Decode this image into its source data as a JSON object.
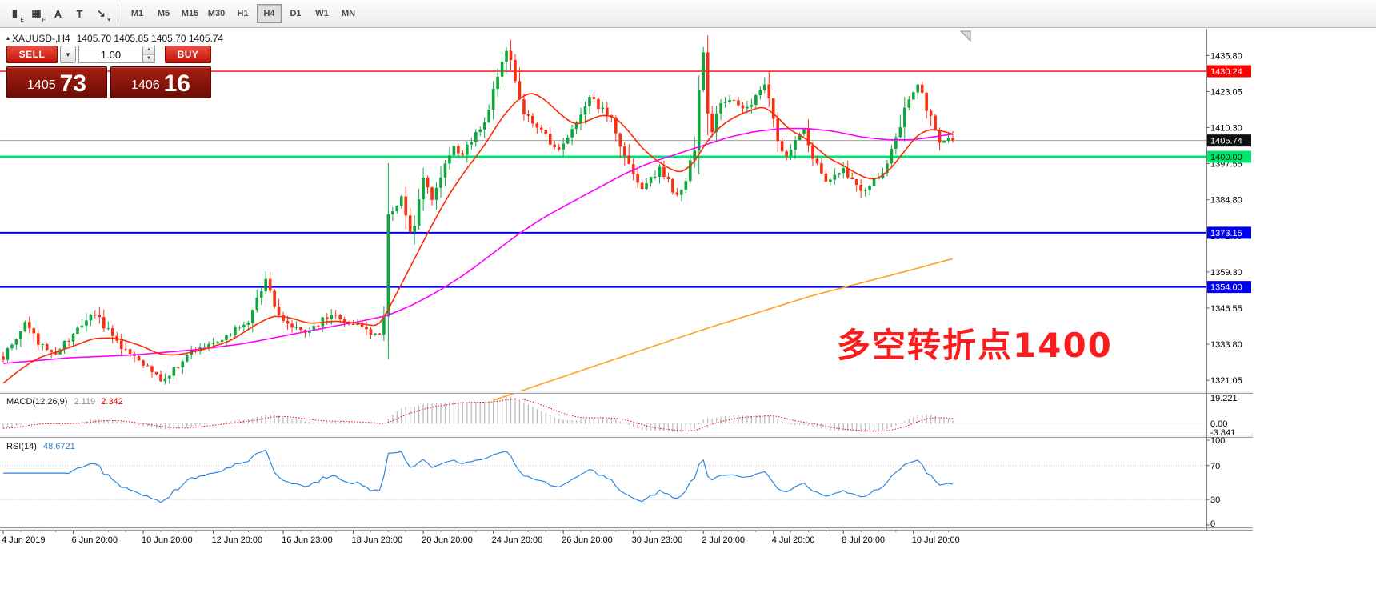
{
  "toolbar": {
    "tools": [
      {
        "name": "chart-style",
        "glyph": "▮",
        "sub": "E"
      },
      {
        "name": "grid",
        "glyph": "▦",
        "sub": "F"
      },
      {
        "name": "text-label",
        "glyph": "A",
        "sub": ""
      },
      {
        "name": "text-box",
        "glyph": "T",
        "sub": ""
      },
      {
        "name": "draw-arrow",
        "glyph": "↘",
        "sub": "▾"
      }
    ],
    "timeframes": [
      "M1",
      "M5",
      "M15",
      "M30",
      "H1",
      "H4",
      "D1",
      "W1",
      "MN"
    ],
    "active_timeframe": "H4"
  },
  "header": {
    "symbol": "XAUUSD-,H4",
    "ohlc": "1405.70 1405.85 1405.70 1405.74"
  },
  "trade_panel": {
    "sell_label": "SELL",
    "buy_label": "BUY",
    "volume": "1.00",
    "bid_main": "1405",
    "bid_big": "73",
    "ask_main": "1406",
    "ask_big": "16",
    "colors": {
      "button_red": "#d7261b",
      "panel_dark_red": "#8c150c"
    }
  },
  "annotation": {
    "text": "多空转折点1400",
    "color": "#fb1d1d"
  },
  "chart_data": {
    "type": "candlestick",
    "symbol": "XAUUSD",
    "timeframe": "H4",
    "title": "XAUUSD-,H4",
    "candle_count": 218,
    "price_min": 1317.7,
    "price_max": 1444.1,
    "current_price": 1405.74,
    "up_color": "#0fa73d",
    "down_color": "#fb2e12",
    "close_waypoints": [
      [
        0,
        1329
      ],
      [
        3,
        1336
      ],
      [
        5,
        1341
      ],
      [
        8,
        1334
      ],
      [
        12,
        1331
      ],
      [
        16,
        1337
      ],
      [
        21,
        1345
      ],
      [
        25,
        1336
      ],
      [
        28,
        1331
      ],
      [
        32,
        1327
      ],
      [
        36,
        1321
      ],
      [
        40,
        1326
      ],
      [
        43,
        1331
      ],
      [
        48,
        1334
      ],
      [
        52,
        1338
      ],
      [
        56,
        1342
      ],
      [
        58,
        1351
      ],
      [
        60,
        1356
      ],
      [
        62,
        1347
      ],
      [
        64,
        1342
      ],
      [
        67,
        1339
      ],
      [
        69,
        1337
      ],
      [
        72,
        1341
      ],
      [
        75,
        1345
      ],
      [
        78,
        1342
      ],
      [
        81,
        1341
      ],
      [
        84,
        1338
      ],
      [
        86,
        1337
      ],
      [
        87,
        1343
      ],
      [
        88,
        1378
      ],
      [
        90,
        1382
      ],
      [
        91,
        1386
      ],
      [
        93,
        1371
      ],
      [
        95,
        1385
      ],
      [
        96,
        1396
      ],
      [
        98,
        1384
      ],
      [
        100,
        1392
      ],
      [
        101,
        1398
      ],
      [
        103,
        1403
      ],
      [
        105,
        1401
      ],
      [
        108,
        1408
      ],
      [
        110,
        1413
      ],
      [
        112,
        1424
      ],
      [
        114,
        1433
      ],
      [
        115,
        1438
      ],
      [
        116,
        1432
      ],
      [
        117,
        1428
      ],
      [
        119,
        1416
      ],
      [
        121,
        1412
      ],
      [
        123,
        1410
      ],
      [
        125,
        1405
      ],
      [
        126,
        1402
      ],
      [
        128,
        1405
      ],
      [
        130,
        1409
      ],
      [
        132,
        1414
      ],
      [
        134,
        1421
      ],
      [
        136,
        1418
      ],
      [
        139,
        1414
      ],
      [
        141,
        1405
      ],
      [
        143,
        1396
      ],
      [
        145,
        1391
      ],
      [
        146,
        1388
      ],
      [
        148,
        1392
      ],
      [
        150,
        1396
      ],
      [
        152,
        1391
      ],
      [
        154,
        1386
      ],
      [
        156,
        1392
      ],
      [
        157,
        1398
      ],
      [
        158,
        1404
      ],
      [
        159,
        1420
      ],
      [
        160,
        1434
      ],
      [
        161,
        1414
      ],
      [
        162,
        1410
      ],
      [
        164,
        1418
      ],
      [
        166,
        1421
      ],
      [
        168,
        1419
      ],
      [
        170,
        1417
      ],
      [
        172,
        1421
      ],
      [
        174,
        1425
      ],
      [
        176,
        1412
      ],
      [
        178,
        1400
      ],
      [
        180,
        1402
      ],
      [
        181,
        1406
      ],
      [
        183,
        1411
      ],
      [
        185,
        1401
      ],
      [
        186,
        1396
      ],
      [
        188,
        1391
      ],
      [
        190,
        1394
      ],
      [
        192,
        1396
      ],
      [
        194,
        1391
      ],
      [
        196,
        1387
      ],
      [
        198,
        1390
      ],
      [
        200,
        1393
      ],
      [
        201,
        1395
      ],
      [
        203,
        1402
      ],
      [
        205,
        1412
      ],
      [
        206,
        1418
      ],
      [
        208,
        1422
      ],
      [
        209,
        1425
      ],
      [
        210,
        1422
      ],
      [
        212,
        1413
      ],
      [
        213,
        1408
      ],
      [
        214,
        1405
      ],
      [
        216,
        1407
      ],
      [
        217,
        1405.74
      ]
    ],
    "hlines": [
      {
        "price": 1430.24,
        "color": "#fe0000",
        "width": 1.4
      },
      {
        "price": 1400.0,
        "color": "#00e36e",
        "width": 3
      },
      {
        "price": 1373.15,
        "color": "#0000ef",
        "width": 2
      },
      {
        "price": 1354.0,
        "color": "#0000ef",
        "width": 2
      }
    ],
    "current_price_line_color": "#a0a0a0",
    "ma_lines": [
      {
        "name": "ma-fast",
        "color": "#ff2a00",
        "width": 1.6,
        "points": [
          [
            0,
            1320
          ],
          [
            4,
            1325
          ],
          [
            8,
            1329
          ],
          [
            14,
            1332
          ],
          [
            21,
            1336
          ],
          [
            26,
            1336
          ],
          [
            32,
            1333
          ],
          [
            36,
            1330
          ],
          [
            40,
            1330
          ],
          [
            46,
            1332
          ],
          [
            52,
            1335
          ],
          [
            58,
            1341
          ],
          [
            62,
            1344
          ],
          [
            66,
            1343
          ],
          [
            70,
            1341
          ],
          [
            76,
            1342
          ],
          [
            82,
            1341
          ],
          [
            86,
            1340
          ],
          [
            90,
            1352
          ],
          [
            94,
            1364
          ],
          [
            98,
            1376
          ],
          [
            102,
            1387
          ],
          [
            106,
            1396
          ],
          [
            110,
            1404
          ],
          [
            114,
            1414
          ],
          [
            118,
            1421
          ],
          [
            121,
            1423
          ],
          [
            124,
            1420
          ],
          [
            128,
            1414
          ],
          [
            131,
            1411
          ],
          [
            134,
            1413
          ],
          [
            137,
            1415
          ],
          [
            140,
            1414
          ],
          [
            143,
            1409
          ],
          [
            146,
            1403
          ],
          [
            149,
            1399
          ],
          [
            152,
            1396
          ],
          [
            155,
            1394
          ],
          [
            158,
            1398
          ],
          [
            161,
            1406
          ],
          [
            164,
            1411
          ],
          [
            167,
            1414
          ],
          [
            170,
            1416
          ],
          [
            174,
            1418
          ],
          [
            177,
            1414
          ],
          [
            180,
            1409
          ],
          [
            183,
            1407
          ],
          [
            186,
            1403
          ],
          [
            189,
            1399
          ],
          [
            192,
            1397
          ],
          [
            195,
            1394
          ],
          [
            198,
            1392
          ],
          [
            200,
            1392
          ],
          [
            203,
            1396
          ],
          [
            206,
            1402
          ],
          [
            209,
            1408
          ],
          [
            212,
            1410
          ],
          [
            215,
            1409
          ],
          [
            217,
            1408
          ]
        ]
      },
      {
        "name": "ma-mid",
        "color": "#ff00ff",
        "width": 1.6,
        "points": [
          [
            0,
            1327
          ],
          [
            15,
            1329
          ],
          [
            30,
            1330
          ],
          [
            45,
            1332
          ],
          [
            55,
            1334
          ],
          [
            65,
            1337
          ],
          [
            75,
            1340
          ],
          [
            82,
            1342
          ],
          [
            88,
            1344
          ],
          [
            94,
            1348
          ],
          [
            100,
            1353
          ],
          [
            106,
            1359
          ],
          [
            112,
            1366
          ],
          [
            118,
            1373
          ],
          [
            124,
            1379
          ],
          [
            130,
            1384
          ],
          [
            136,
            1389
          ],
          [
            142,
            1394
          ],
          [
            148,
            1398
          ],
          [
            154,
            1401
          ],
          [
            160,
            1404
          ],
          [
            166,
            1407
          ],
          [
            172,
            1409
          ],
          [
            178,
            1410
          ],
          [
            184,
            1410
          ],
          [
            190,
            1409
          ],
          [
            196,
            1407
          ],
          [
            202,
            1406
          ],
          [
            208,
            1406
          ],
          [
            217,
            1408
          ]
        ]
      },
      {
        "name": "ma-slow",
        "color": "#ffa020",
        "width": 1.6,
        "points": [
          [
            112,
            1314
          ],
          [
            135,
            1326
          ],
          [
            160,
            1339
          ],
          [
            185,
            1351
          ],
          [
            205,
            1359
          ],
          [
            217,
            1364
          ]
        ]
      }
    ],
    "price_axis": {
      "ticks": [
        "1435.80",
        "1423.05",
        "1410.30",
        "1397.55",
        "1384.80",
        "1372.05",
        "1359.30",
        "1346.55",
        "1333.80",
        "1321.05"
      ],
      "badges": [
        {
          "label": "1430.24",
          "price": 1430.24,
          "bg": "#fe0000",
          "fg": "#ffffff"
        },
        {
          "label": "1405.74",
          "price": 1405.74,
          "bg": "#111111",
          "fg": "#ffffff"
        },
        {
          "label": "1400.00",
          "price": 1400.0,
          "bg": "#00e36e",
          "fg": "#00240e"
        },
        {
          "label": "1373.15",
          "price": 1373.15,
          "bg": "#0000ef",
          "fg": "#ffffff"
        },
        {
          "label": "1354.00",
          "price": 1354.0,
          "bg": "#0000ef",
          "fg": "#ffffff"
        }
      ]
    },
    "time_axis": [
      "4 Jun 2019",
      "6 Jun 20:00",
      "10 Jun 20:00",
      "12 Jun 20:00",
      "16 Jun 23:00",
      "18 Jun 20:00",
      "20 Jun 20:00",
      "24 Jun 20:00",
      "26 Jun 20:00",
      "30 Jun 23:00",
      "2 Jul 20:00",
      "4 Jul 20:00",
      "8 Jul 20:00",
      "10 Jul 20:00"
    ],
    "macd": {
      "label": "MACD(12,26,9)",
      "main_value": "2.119",
      "signal_value": "2.342",
      "fast": 12,
      "slow": 26,
      "signal": 9,
      "axis_labels": [
        "19.221",
        "0.00",
        "-3.841"
      ],
      "hist_color": "#bdbdbd",
      "signal_color": "#f00000"
    },
    "rsi": {
      "label": "RSI(14)",
      "value": "48.6721",
      "period": 14,
      "axis_labels": [
        "100",
        "70",
        "30",
        "0"
      ],
      "levels": [
        70,
        30
      ],
      "color": "#2f86e0"
    }
  }
}
